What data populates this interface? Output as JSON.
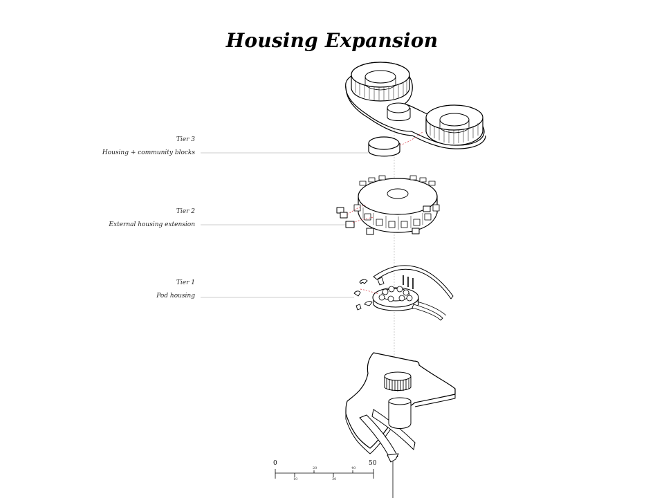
{
  "title": "Housing Expansion",
  "tiers": [
    {
      "label": "Tier 3",
      "description": "Housing + community blocks"
    },
    {
      "label": "Tier 2",
      "description": "External housing extension"
    },
    {
      "label": "Tier 1",
      "description": "Pod housing"
    }
  ],
  "scale_bar": {
    "main_labels": [
      "0",
      "50"
    ],
    "minor_labels": [
      "10",
      "20",
      "30",
      "40"
    ]
  },
  "colors": {
    "ink": "#000000",
    "leader": "#bdbdbd",
    "accent_dash": "#d9333f"
  }
}
